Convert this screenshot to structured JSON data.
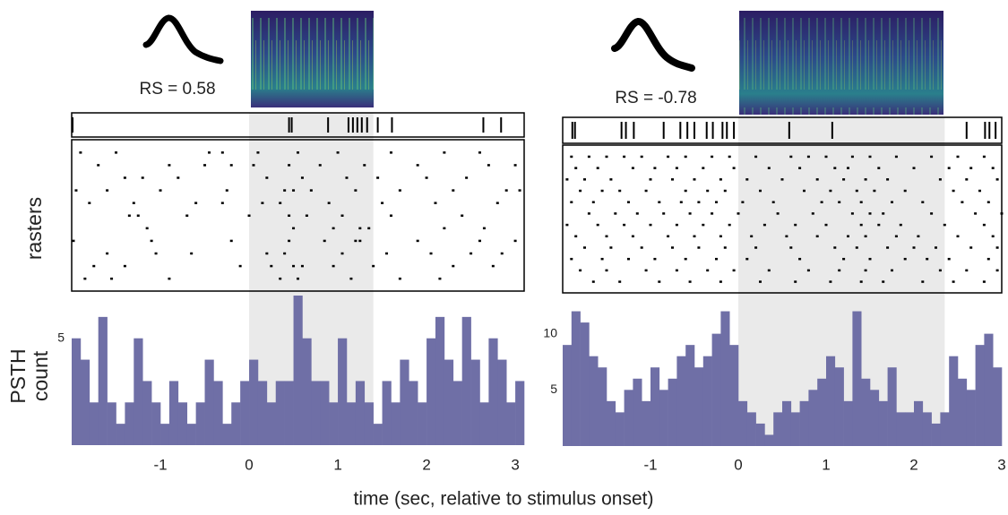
{
  "x_label": "time (sec, relative to stimulus onset)",
  "raster_label": "rasters",
  "psth_label": [
    "PSTH",
    "count"
  ],
  "chart_data": [
    {
      "type": "histogram",
      "annotation": "RS = 0.58",
      "color": "#6f6fa6",
      "stimulus": [
        0,
        1.4
      ],
      "xlim": [
        -2,
        3.1
      ],
      "xticks": [
        -1,
        0,
        1,
        2,
        3
      ],
      "ylim": [
        0,
        7
      ],
      "yticks": [
        5
      ],
      "bins": [
        -2,
        -1.9,
        -1.8,
        -1.7,
        -1.6,
        -1.5,
        -1.4,
        -1.3,
        -1.2,
        -1.1,
        -1,
        -0.9,
        -0.8,
        -0.7,
        -0.6,
        -0.5,
        -0.4,
        -0.3,
        -0.2,
        -0.1,
        0,
        0.1,
        0.2,
        0.3,
        0.4,
        0.5,
        0.6,
        0.7,
        0.8,
        0.9,
        1,
        1.1,
        1.2,
        1.3,
        1.4,
        1.5,
        1.6,
        1.7,
        1.8,
        1.9,
        2,
        2.1,
        2.2,
        2.3,
        2.4,
        2.5,
        2.6,
        2.7,
        2.8,
        2.9,
        3,
        3.1
      ],
      "counts": [
        5,
        4,
        2,
        6,
        2,
        1,
        2,
        5,
        3,
        2,
        1,
        3,
        2,
        1,
        2,
        4,
        3,
        1,
        2,
        3,
        4,
        3,
        2,
        3,
        3,
        7,
        5,
        3,
        3,
        2,
        5,
        2,
        3,
        2,
        1,
        3,
        2,
        4,
        3,
        2,
        5,
        6,
        4,
        3,
        6,
        4,
        2,
        5,
        4,
        2,
        3
      ],
      "example_trial": [
        -1.99,
        0.45,
        0.48,
        0.89,
        1.12,
        1.17,
        1.22,
        1.27,
        1.33,
        1.45,
        1.61,
        2.64,
        2.84
      ],
      "raster": [
        [
          -1.9,
          -1.5,
          -0.45,
          -0.3,
          0.1,
          0.55,
          1.0,
          1.6,
          2.2,
          2.6
        ],
        [
          -1.7,
          -0.9,
          -0.5,
          -0.2,
          0.05,
          0.45,
          0.8,
          1.3,
          1.9,
          2.7,
          3.0
        ],
        [
          -1.4,
          -1.2,
          -0.8,
          0.2,
          0.6,
          1.1,
          1.45,
          2.0,
          2.45
        ],
        [
          -1.95,
          -1.6,
          -1.0,
          -0.25,
          0.4,
          0.5,
          0.7,
          1.2,
          1.7,
          2.3,
          2.9,
          3.05
        ],
        [
          -1.8,
          -1.3,
          -0.6,
          -0.3,
          0.15,
          0.35,
          0.9,
          1.5,
          2.1,
          2.8
        ],
        [
          -1.35,
          -1.25,
          -0.7,
          0.0,
          0.45,
          0.65,
          1.05,
          1.6,
          2.4
        ],
        [
          -1.15,
          0.5,
          0.95,
          1.25,
          1.35,
          2.2,
          2.65
        ],
        [
          -1.98,
          -1.1,
          -0.2,
          0.45,
          0.85,
          1.2,
          1.25,
          1.9,
          2.6,
          3.0
        ],
        [
          -1.6,
          -1.05,
          -0.65,
          0.2,
          0.4,
          1.05,
          1.55,
          2.05,
          2.5,
          2.85
        ],
        [
          -1.75,
          -1.4,
          -0.1,
          0.25,
          0.5,
          0.6,
          0.95,
          1.4,
          2.3,
          2.75
        ],
        [
          -1.85,
          -1.55,
          -0.9,
          0.35,
          0.55,
          1.15,
          1.7,
          2.15
        ]
      ]
    },
    {
      "type": "histogram",
      "annotation": "RS = -0.78",
      "color": "#6f6fa6",
      "stimulus": [
        0,
        2.35
      ],
      "xlim": [
        -2,
        3
      ],
      "xticks": [
        -1,
        0,
        1,
        2,
        3
      ],
      "ylim": [
        0,
        13
      ],
      "yticks": [
        5,
        10
      ],
      "bins": [
        -2,
        -1.9,
        -1.8,
        -1.7,
        -1.6,
        -1.5,
        -1.4,
        -1.3,
        -1.2,
        -1.1,
        -1,
        -0.9,
        -0.8,
        -0.7,
        -0.6,
        -0.5,
        -0.4,
        -0.3,
        -0.2,
        -0.1,
        0,
        0.1,
        0.2,
        0.3,
        0.4,
        0.5,
        0.6,
        0.7,
        0.8,
        0.9,
        1,
        1.1,
        1.2,
        1.3,
        1.4,
        1.5,
        1.6,
        1.7,
        1.8,
        1.9,
        2,
        2.1,
        2.2,
        2.3,
        2.4,
        2.5,
        2.6,
        2.7,
        2.8,
        2.9,
        3
      ],
      "counts": [
        9,
        12,
        11,
        8,
        7,
        4,
        3,
        5,
        6,
        4,
        7,
        5,
        6,
        8,
        9,
        7,
        8,
        10,
        12,
        9,
        4,
        3,
        2,
        1,
        3,
        4,
        3,
        4,
        5,
        6,
        8,
        7,
        4,
        12,
        6,
        5,
        4,
        7,
        3,
        3,
        4,
        3,
        2,
        3,
        8,
        6,
        5,
        9,
        10,
        7
      ],
      "example_trial": [
        -1.89,
        -1.86,
        -1.33,
        -1.28,
        -1.19,
        -0.85,
        -0.66,
        -0.58,
        -0.5,
        -0.36,
        -0.29,
        -0.18,
        -0.13,
        -0.05,
        0.58,
        1.07,
        2.6,
        2.81,
        2.86,
        2.93
      ],
      "raster": [
        [
          -1.9,
          -1.7,
          -1.5,
          -1.3,
          -1.1,
          -0.8,
          -0.6,
          -0.3,
          -0.1,
          0.2,
          0.6,
          0.8,
          1.0,
          1.3,
          1.5,
          1.8,
          2.2,
          2.5,
          2.8
        ],
        [
          -1.85,
          -1.6,
          -1.2,
          -0.95,
          -0.7,
          -0.4,
          -0.05,
          0.35,
          0.7,
          1.1,
          1.25,
          1.6,
          2.0,
          2.4,
          2.65,
          2.9
        ],
        [
          -1.95,
          -1.75,
          -1.45,
          -1.0,
          -0.75,
          -0.5,
          -0.2,
          0.1,
          0.5,
          0.9,
          1.2,
          1.45,
          1.7,
          2.3,
          2.6,
          2.95
        ],
        [
          -1.8,
          -1.55,
          -1.35,
          -1.05,
          -0.6,
          -0.35,
          -0.15,
          0.25,
          0.75,
          1.05,
          1.35,
          1.55,
          1.9,
          2.45,
          2.75
        ],
        [
          -1.9,
          -1.65,
          -1.25,
          -0.9,
          -0.65,
          -0.45,
          -0.25,
          0.05,
          0.4,
          0.95,
          1.15,
          1.4,
          1.75,
          2.1,
          2.55,
          2.85
        ],
        [
          -1.7,
          -1.4,
          -1.15,
          -0.85,
          -0.55,
          -0.3,
          0.0,
          0.45,
          0.85,
          1.3,
          1.5,
          1.65,
          2.2,
          2.7,
          3.0
        ],
        [
          -1.95,
          -1.6,
          -1.3,
          -1.0,
          -0.7,
          -0.4,
          -0.1,
          0.3,
          0.65,
          1.0,
          1.4,
          1.6,
          1.85,
          2.35,
          2.8
        ],
        [
          -1.85,
          -1.5,
          -1.2,
          -0.8,
          -0.5,
          -0.2,
          0.15,
          0.55,
          0.9,
          1.25,
          1.45,
          1.8,
          2.05,
          2.5,
          2.9
        ],
        [
          -1.75,
          -1.45,
          -1.1,
          -0.75,
          -0.45,
          -0.15,
          0.2,
          0.6,
          1.1,
          1.35,
          1.7,
          2.0,
          2.25,
          2.65,
          2.95
        ],
        [
          -1.9,
          -1.55,
          -1.25,
          -0.95,
          -0.6,
          -0.25,
          0.1,
          0.7,
          1.2,
          1.5,
          1.9,
          2.15,
          2.4,
          2.85
        ],
        [
          -1.8,
          -1.5,
          -1.05,
          -0.7,
          -0.35,
          -0.05,
          0.35,
          0.8,
          1.15,
          1.45,
          1.75,
          2.3,
          2.6,
          2.95
        ],
        [
          -1.65,
          -1.35,
          -0.9,
          -0.55,
          -0.2,
          0.25,
          0.65,
          1.05,
          1.4,
          1.65,
          2.1,
          2.45,
          2.8
        ]
      ]
    }
  ]
}
